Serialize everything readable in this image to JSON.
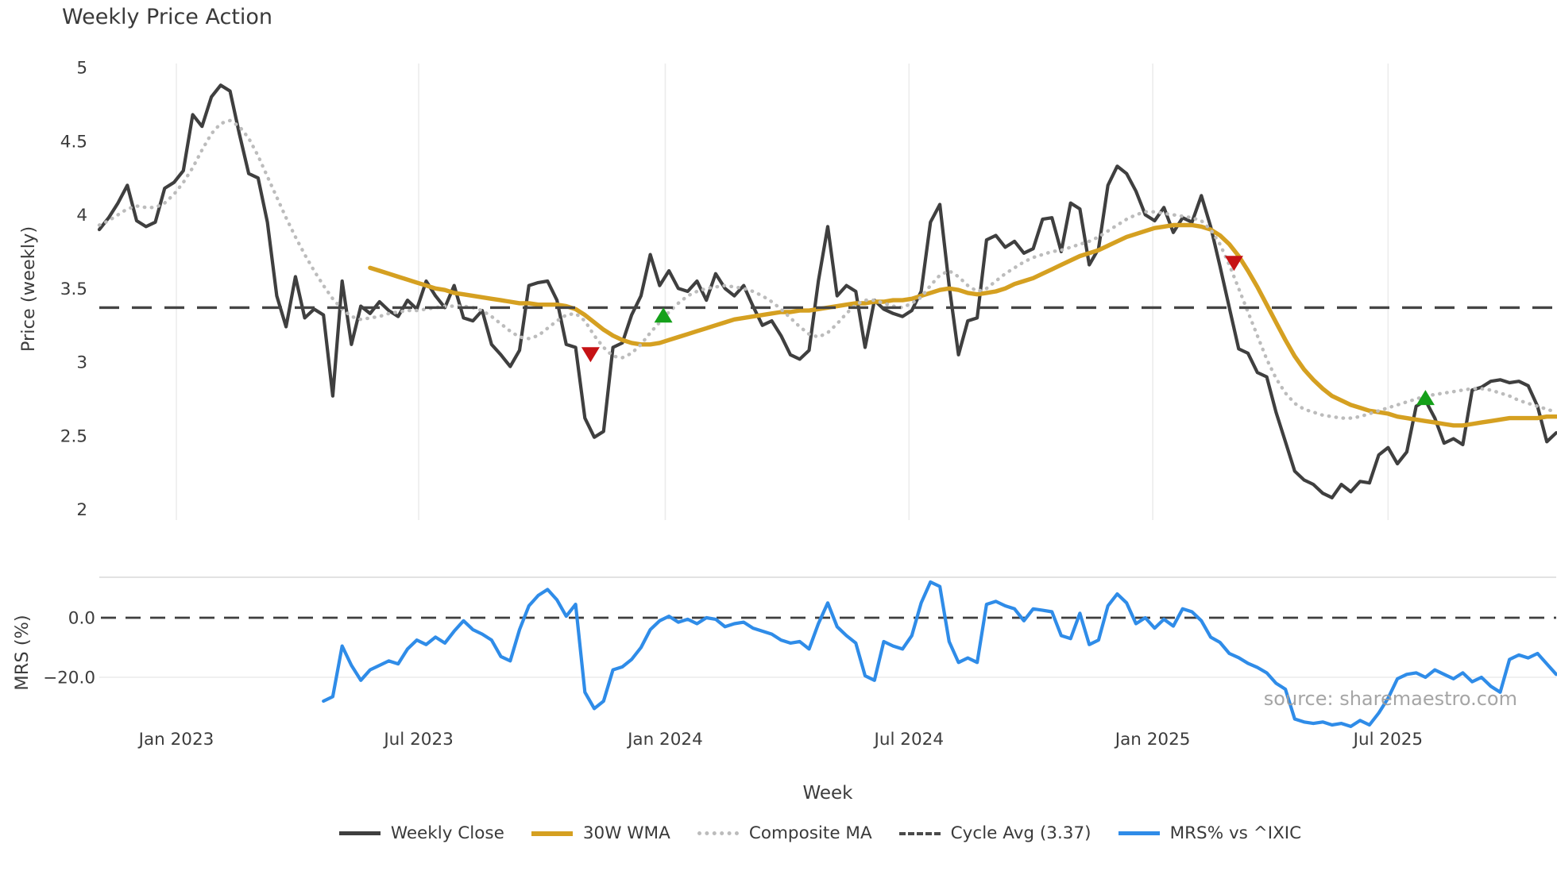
{
  "title": "Weekly Price Action",
  "watermark": "source: sharemaestro.com",
  "chart_data": {
    "type": "line",
    "title": "Weekly Price Action",
    "xlabel": "Week",
    "x_start_date": "2022-11-07",
    "x_step_days": 7,
    "n_weeks": 157,
    "top_panel": {
      "ylabel": "Price (weekly)",
      "ylim": [
        1.85,
        5.05
      ],
      "yticks": [
        5,
        4.5,
        4,
        3.5,
        3,
        2.5,
        2
      ],
      "ytick_labels": [
        "5",
        "4.5",
        "4",
        "3.5",
        "3",
        "2.5",
        "2"
      ],
      "grid": "vertical-only"
    },
    "bottom_panel": {
      "ylabel": "MRS (%)",
      "yticks": [
        0,
        -20
      ],
      "ytick_labels": [
        "0.0",
        "−20.0"
      ],
      "zero_line": "dashed"
    },
    "x_ticks": [
      {
        "label": "Jan 2023",
        "week": 8.25
      },
      {
        "label": "Jul 2023",
        "week": 34.2
      },
      {
        "label": "Jan 2024",
        "week": 60.6
      },
      {
        "label": "Jul 2024",
        "week": 86.7
      },
      {
        "label": "Jan 2025",
        "week": 112.8
      },
      {
        "label": "Jul 2025",
        "week": 138.0
      }
    ],
    "series": [
      {
        "name": "Weekly Close",
        "panel": "top",
        "style": "solid",
        "color": "#3f3f3f",
        "width": 4.2,
        "start_week": 0,
        "values": [
          3.9,
          3.98,
          4.08,
          4.2,
          3.96,
          3.92,
          3.95,
          4.18,
          4.22,
          4.3,
          4.68,
          4.6,
          4.8,
          4.88,
          4.84,
          4.55,
          4.28,
          4.25,
          3.95,
          3.45,
          3.24,
          3.58,
          3.3,
          3.36,
          3.32,
          2.77,
          3.55,
          3.12,
          3.38,
          3.33,
          3.41,
          3.35,
          3.31,
          3.42,
          3.36,
          3.55,
          3.45,
          3.37,
          3.52,
          3.3,
          3.28,
          3.35,
          3.12,
          3.05,
          2.97,
          3.08,
          3.52,
          3.54,
          3.55,
          3.42,
          3.12,
          3.1,
          2.62,
          2.49,
          2.53,
          3.1,
          3.13,
          3.32,
          3.45,
          3.73,
          3.52,
          3.62,
          3.5,
          3.48,
          3.55,
          3.42,
          3.6,
          3.5,
          3.45,
          3.52,
          3.38,
          3.25,
          3.28,
          3.18,
          3.05,
          3.02,
          3.08,
          3.55,
          3.92,
          3.45,
          3.52,
          3.48,
          3.1,
          3.42,
          3.36,
          3.33,
          3.31,
          3.35,
          3.48,
          3.95,
          4.07,
          3.52,
          3.05,
          3.28,
          3.3,
          3.83,
          3.86,
          3.78,
          3.82,
          3.74,
          3.77,
          3.97,
          3.98,
          3.75,
          4.08,
          4.04,
          3.66,
          3.77,
          4.2,
          4.33,
          4.28,
          4.16,
          4.0,
          3.96,
          4.05,
          3.88,
          3.98,
          3.95,
          4.13,
          3.92,
          3.65,
          3.37,
          3.09,
          3.06,
          2.93,
          2.9,
          2.66,
          2.46,
          2.26,
          2.2,
          2.17,
          2.11,
          2.08,
          2.17,
          2.12,
          2.19,
          2.18,
          2.37,
          2.42,
          2.31,
          2.39,
          2.7,
          2.74,
          2.62,
          2.45,
          2.48,
          2.44,
          2.81,
          2.83,
          2.87,
          2.88,
          2.86,
          2.87,
          2.84,
          2.7,
          2.46,
          2.52
        ]
      },
      {
        "name": "30W WMA",
        "panel": "top",
        "style": "solid",
        "color": "#d5a021",
        "width": 5.4,
        "start_week": 29,
        "values": [
          3.64,
          3.62,
          3.6,
          3.58,
          3.56,
          3.54,
          3.52,
          3.5,
          3.49,
          3.47,
          3.46,
          3.45,
          3.44,
          3.43,
          3.42,
          3.41,
          3.4,
          3.4,
          3.39,
          3.39,
          3.39,
          3.38,
          3.36,
          3.32,
          3.27,
          3.22,
          3.18,
          3.15,
          3.13,
          3.12,
          3.12,
          3.13,
          3.15,
          3.17,
          3.19,
          3.21,
          3.23,
          3.25,
          3.27,
          3.29,
          3.3,
          3.31,
          3.32,
          3.33,
          3.34,
          3.34,
          3.35,
          3.35,
          3.36,
          3.37,
          3.38,
          3.39,
          3.4,
          3.4,
          3.41,
          3.41,
          3.42,
          3.42,
          3.43,
          3.45,
          3.47,
          3.49,
          3.5,
          3.49,
          3.47,
          3.46,
          3.47,
          3.48,
          3.5,
          3.53,
          3.55,
          3.57,
          3.6,
          3.63,
          3.66,
          3.69,
          3.72,
          3.74,
          3.76,
          3.79,
          3.82,
          3.85,
          3.87,
          3.89,
          3.91,
          3.92,
          3.93,
          3.93,
          3.93,
          3.92,
          3.9,
          3.86,
          3.8,
          3.72,
          3.62,
          3.51,
          3.39,
          3.27,
          3.15,
          3.04,
          2.95,
          2.88,
          2.82,
          2.77,
          2.74,
          2.71,
          2.69,
          2.67,
          2.66,
          2.65,
          2.63,
          2.62,
          2.61,
          2.6,
          2.59,
          2.58,
          2.57,
          2.57,
          2.58,
          2.59,
          2.6,
          2.61,
          2.62,
          2.62,
          2.62,
          2.62,
          2.63,
          2.63
        ]
      },
      {
        "name": "Composite MA",
        "panel": "top",
        "style": "dotted",
        "color": "#bcbcbc",
        "width": 4.4,
        "start_week": 0,
        "values": [
          3.93,
          3.96,
          4.0,
          4.04,
          4.06,
          4.05,
          4.05,
          4.08,
          4.14,
          4.22,
          4.32,
          4.44,
          4.55,
          4.62,
          4.64,
          4.6,
          4.52,
          4.4,
          4.26,
          4.12,
          3.98,
          3.85,
          3.73,
          3.62,
          3.52,
          3.43,
          3.36,
          3.31,
          3.29,
          3.3,
          3.31,
          3.33,
          3.34,
          3.35,
          3.35,
          3.36,
          3.37,
          3.38,
          3.38,
          3.38,
          3.37,
          3.35,
          3.31,
          3.26,
          3.21,
          3.17,
          3.16,
          3.18,
          3.23,
          3.28,
          3.32,
          3.33,
          3.28,
          3.18,
          3.1,
          3.04,
          3.03,
          3.06,
          3.12,
          3.2,
          3.27,
          3.34,
          3.4,
          3.45,
          3.48,
          3.5,
          3.51,
          3.52,
          3.51,
          3.5,
          3.48,
          3.45,
          3.41,
          3.36,
          3.3,
          3.24,
          3.19,
          3.17,
          3.2,
          3.26,
          3.33,
          3.39,
          3.42,
          3.42,
          3.4,
          3.38,
          3.37,
          3.4,
          3.44,
          3.52,
          3.59,
          3.62,
          3.58,
          3.52,
          3.48,
          3.5,
          3.55,
          3.6,
          3.64,
          3.68,
          3.71,
          3.73,
          3.75,
          3.76,
          3.78,
          3.8,
          3.82,
          3.85,
          3.89,
          3.93,
          3.97,
          4.0,
          4.02,
          4.02,
          4.01,
          4.0,
          3.99,
          3.98,
          3.96,
          3.9,
          3.8,
          3.66,
          3.5,
          3.34,
          3.18,
          3.02,
          2.89,
          2.79,
          2.72,
          2.68,
          2.66,
          2.64,
          2.63,
          2.62,
          2.62,
          2.63,
          2.65,
          2.67,
          2.69,
          2.71,
          2.73,
          2.75,
          2.77,
          2.78,
          2.79,
          2.8,
          2.81,
          2.82,
          2.82,
          2.81,
          2.79,
          2.77,
          2.74,
          2.72,
          2.7,
          2.68,
          2.66
        ]
      },
      {
        "name": "Cycle Avg (3.37)",
        "panel": "top",
        "style": "dashed",
        "color": "#454545",
        "width": 3.4,
        "constant": 3.37
      },
      {
        "name": "MRS% vs ^IXIC",
        "panel": "bottom",
        "style": "solid",
        "color": "#2f8ce8",
        "width": 4.2,
        "start_week": 24,
        "values": [
          -28,
          -26.5,
          -9.5,
          -16,
          -21,
          -17.5,
          -16,
          -14.5,
          -15.5,
          -10.5,
          -7.5,
          -9,
          -6.5,
          -8.5,
          -4.5,
          -1,
          -4,
          -5.5,
          -7.5,
          -13,
          -14.5,
          -4,
          4,
          7.5,
          9.5,
          6,
          0.5,
          4.5,
          -25,
          -30.5,
          -28,
          -17.5,
          -16.5,
          -14,
          -10,
          -4,
          -1,
          0.5,
          -1.5,
          -0.5,
          -2,
          0,
          -0.5,
          -3,
          -2,
          -1.5,
          -3.5,
          -4.5,
          -5.5,
          -7.5,
          -8.5,
          -8,
          -10.5,
          -2,
          5,
          -3,
          -6,
          -8.5,
          -19.5,
          -21,
          -8,
          -9.5,
          -10.5,
          -6,
          5,
          12,
          10.5,
          -8,
          -15,
          -13.5,
          -15,
          4.5,
          5.5,
          4,
          3,
          -1,
          3,
          2.5,
          2,
          -6,
          -7,
          1.5,
          -9,
          -7.5,
          4,
          8,
          5,
          -2,
          0,
          -3.5,
          -0.5,
          -2.8,
          3,
          2,
          -1,
          -6.5,
          -8.3,
          -12,
          -13.4,
          -15.3,
          -16.7,
          -18.5,
          -22,
          -24,
          -34,
          -35,
          -35.5,
          -35,
          -36,
          -35.5,
          -36.5,
          -34.5,
          -36,
          -32,
          -27,
          -20.5,
          -19,
          -18.5,
          -20,
          -17.5,
          -19,
          -20.5,
          -18.5,
          -21.5,
          -20,
          -23,
          -25,
          -14,
          -12.5,
          -13.5,
          -12,
          -15.5,
          -19
        ]
      }
    ],
    "markers": [
      {
        "type": "sell-signal",
        "shape": "triangle-down",
        "color": "#c61215",
        "week": 52.6,
        "price": 3.05
      },
      {
        "type": "buy-signal",
        "shape": "triangle-up",
        "color": "#15a01a",
        "week": 60.4,
        "price": 3.32
      },
      {
        "type": "sell-signal",
        "shape": "triangle-down",
        "color": "#c61215",
        "week": 121.5,
        "price": 3.67
      },
      {
        "type": "buy-signal",
        "shape": "triangle-up",
        "color": "#15a01a",
        "week": 142.0,
        "price": 2.76
      }
    ],
    "legend": [
      {
        "label": "Weekly Close",
        "style": "solid",
        "color": "#3f3f3f",
        "thickness": 5
      },
      {
        "label": "30W WMA",
        "style": "solid",
        "color": "#d5a021",
        "thickness": 6
      },
      {
        "label": "Composite MA",
        "style": "dotted",
        "color": "#bcbcbc",
        "thickness": 5
      },
      {
        "label": "Cycle Avg (3.37)",
        "style": "dashed",
        "color": "#4a4a4a",
        "thickness": 4
      },
      {
        "label": "MRS% vs ^IXIC",
        "style": "solid",
        "color": "#2f8ce8",
        "thickness": 5
      }
    ],
    "legend_position": "bottom-center",
    "colors": {
      "background": "#ffffff",
      "grid": "#ececec",
      "panel_border": "#d9d9d9",
      "tick_text": "#3c3c3c",
      "watermark_text": "#9e9e9e"
    }
  }
}
